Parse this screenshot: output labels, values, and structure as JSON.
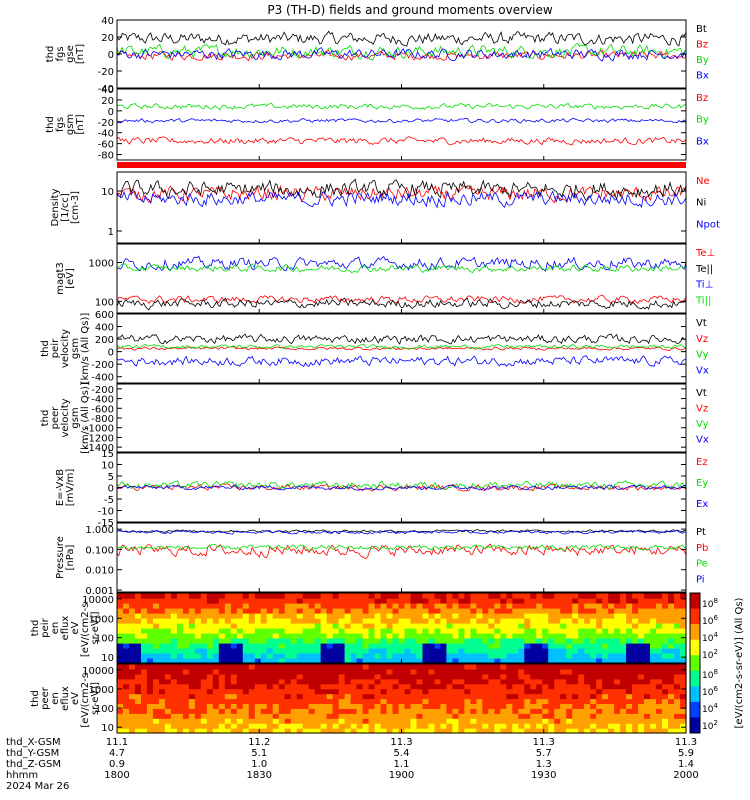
{
  "title": "P3 (TH-D) fields and ground moments overview",
  "colors": {
    "black": "#000000",
    "red": "#ff0000",
    "green": "#00dd00",
    "blue": "#0000ff"
  },
  "chart_data": {
    "type": "line",
    "x_range": [
      "18:00",
      "20:00"
    ],
    "panels": [
      {
        "ylabel": [
          "thd",
          "fgs",
          "gse",
          "[nT]"
        ],
        "ylim": [
          -40,
          40
        ],
        "ticks": [
          -40,
          -20,
          0,
          20,
          40
        ],
        "scale": "linear",
        "series": [
          {
            "name": "Bt",
            "color": "black",
            "mean": 18,
            "amp": 12
          },
          {
            "name": "Bz",
            "color": "red",
            "mean": -2,
            "amp": 8
          },
          {
            "name": "By",
            "color": "green",
            "mean": 3,
            "amp": 12
          },
          {
            "name": "Bx",
            "color": "blue",
            "mean": 0,
            "amp": 10
          }
        ]
      },
      {
        "ylabel": [
          "thd",
          "fgs",
          "gsm",
          "[nT]"
        ],
        "ylim": [
          -90,
          40
        ],
        "ticks": [
          -80,
          -60,
          -40,
          -20,
          0,
          20,
          40
        ],
        "scale": "linear",
        "series": [
          {
            "name": "Bz",
            "color": "red",
            "mean": -55,
            "amp": 10
          },
          {
            "name": "By",
            "color": "green",
            "mean": 8,
            "amp": 8
          },
          {
            "name": "Bx",
            "color": "blue",
            "mean": -18,
            "amp": 6
          }
        ]
      },
      {
        "ylabel": [
          "Density",
          "[1/cc]",
          "[cm-3]"
        ],
        "ylim": [
          0.5,
          30
        ],
        "ticks": [
          1,
          10
        ],
        "scale": "log",
        "series": [
          {
            "name": "Ne",
            "color": "red",
            "mean": 8,
            "amp": 0.3
          },
          {
            "name": "Ni",
            "color": "black",
            "mean": 10,
            "amp": 0.35
          },
          {
            "name": "Npot",
            "color": "blue",
            "mean": 6,
            "amp": 0.3
          }
        ]
      },
      {
        "ylabel": [
          "magt3",
          "[eV]"
        ],
        "ylim": [
          50,
          3000
        ],
        "ticks": [
          100,
          1000
        ],
        "scale": "log",
        "series": [
          {
            "name": "Te⊥",
            "color": "red",
            "mean": 110,
            "amp": 0.15
          },
          {
            "name": "Te||",
            "color": "black",
            "mean": 85,
            "amp": 0.2
          },
          {
            "name": "Ti⊥",
            "color": "blue",
            "mean": 900,
            "amp": 0.25
          },
          {
            "name": "Ti||",
            "color": "green",
            "mean": 700,
            "amp": 0.15
          }
        ]
      },
      {
        "ylabel": [
          "thd",
          "peir",
          "velocity",
          "gsm",
          "[km/s (All Qs)]"
        ],
        "ylim": [
          -500,
          600
        ],
        "ticks": [
          -400,
          -200,
          0,
          200,
          400,
          600
        ],
        "scale": "linear",
        "series": [
          {
            "name": "Vt",
            "color": "black",
            "mean": 200,
            "amp": 110
          },
          {
            "name": "Vz",
            "color": "red",
            "mean": 50,
            "amp": 40
          },
          {
            "name": "Vy",
            "color": "green",
            "mean": 80,
            "amp": 50
          },
          {
            "name": "Vx",
            "color": "blue",
            "mean": -150,
            "amp": 120
          }
        ]
      },
      {
        "ylabel": [
          "thd",
          "peer",
          "velocity",
          "gsm",
          "[km/s (All Qs)]"
        ],
        "ylim": [
          -1500,
          -100
        ],
        "ticks": [
          -1400,
          -1200,
          -1000,
          -800,
          -600,
          -400,
          -200
        ],
        "scale": "linear",
        "series": [
          {
            "name": "Vt",
            "color": "black"
          },
          {
            "name": "Vz",
            "color": "red"
          },
          {
            "name": "Vy",
            "color": "green"
          },
          {
            "name": "Vx",
            "color": "blue"
          }
        ]
      },
      {
        "ylabel": [
          "E=-VxB",
          "[mV/m]"
        ],
        "ylim": [
          -15,
          15
        ],
        "ticks": [
          -15,
          -10,
          -5,
          0,
          5,
          10,
          15
        ],
        "scale": "linear",
        "series": [
          {
            "name": "Ez",
            "color": "red",
            "mean": 0,
            "amp": 2
          },
          {
            "name": "Ey",
            "color": "green",
            "mean": 1,
            "amp": 2.5
          },
          {
            "name": "Ex",
            "color": "blue",
            "mean": 0,
            "amp": 1.5
          }
        ]
      },
      {
        "ylabel": [
          "Pressure",
          "[nPa]"
        ],
        "ylim": [
          0.0008,
          2
        ],
        "ticks": [
          0.001,
          0.01,
          0.1,
          1
        ],
        "ticklabels": [
          "0.001",
          "0.010",
          "0.100",
          "1.000"
        ],
        "scale": "log",
        "series": [
          {
            "name": "Pt",
            "color": "black",
            "mean": 0.8,
            "amp": 0.1
          },
          {
            "name": "Pb",
            "color": "red",
            "mean": 0.08,
            "amp": 0.45
          },
          {
            "name": "Pe",
            "color": "green",
            "mean": 0.12,
            "amp": 0.2
          },
          {
            "name": "Pi",
            "color": "blue",
            "mean": 0.7,
            "amp": 0.12
          }
        ]
      },
      {
        "type": "spectrogram",
        "ylabel": [
          "thd",
          "peir",
          "en",
          "eflux",
          "eV",
          "[eV/(cm2-s-",
          "sr-eV)]"
        ],
        "ylim": [
          5,
          20000
        ],
        "ticks": [
          10,
          100,
          1000,
          10000
        ],
        "scale": "log"
      },
      {
        "type": "spectrogram",
        "ylabel": [
          "thd",
          "peer",
          "en",
          "eflux",
          "eV",
          "[eV/(cm2-s-",
          "sr-eV)]"
        ],
        "ylim": [
          5,
          20000
        ],
        "ticks": [
          10,
          100,
          1000,
          10000
        ],
        "scale": "log"
      }
    ],
    "colorbar": {
      "label": "[eV/(cm2-s-sr-eV)] (All Qs)",
      "tick_exponents": [
        "8",
        "6",
        "4",
        "2"
      ],
      "tick_base": "10",
      "colors": [
        "#0000a0",
        "#0040ff",
        "#00c0ff",
        "#00ff90",
        "#60ff00",
        "#ffff00",
        "#ffa000",
        "#ff3000",
        "#c00000"
      ]
    },
    "x_axis": {
      "rows": [
        {
          "label": "thd_X-GSM",
          "values": [
            "11.1",
            "11.2",
            "11.3",
            "11.3",
            "11.3"
          ]
        },
        {
          "label": "thd_Y-GSM",
          "values": [
            "4.7",
            "5.1",
            "5.4",
            "5.7",
            "5.9"
          ]
        },
        {
          "label": "thd_Z-GSM",
          "values": [
            "0.9",
            "1.0",
            "1.1",
            "1.3",
            "1.4"
          ]
        },
        {
          "label": "hhmm",
          "values": [
            "1800",
            "1830",
            "1900",
            "1930",
            "2000"
          ]
        }
      ],
      "date": "2024 Mar 26"
    }
  }
}
